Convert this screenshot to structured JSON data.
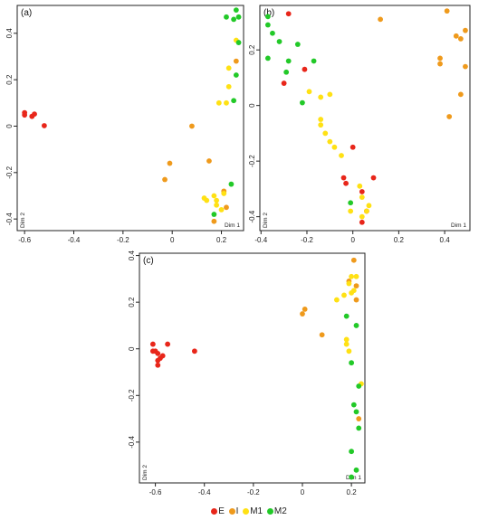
{
  "colors": {
    "E": "#e8261a",
    "I": "#ef9a1c",
    "M1": "#ffe114",
    "M2": "#22c928"
  },
  "legend": [
    {
      "key": "E",
      "label": "E"
    },
    {
      "key": "I",
      "label": "I"
    },
    {
      "key": "M1",
      "label": "M1"
    },
    {
      "key": "M2",
      "label": "M2"
    }
  ],
  "chart_data": [
    {
      "type": "scatter",
      "panel_label": "(a)",
      "xlabel": "Dim 1",
      "ylabel": "Dim 2",
      "xlim": [
        -0.63,
        0.29
      ],
      "ylim": [
        -0.45,
        0.52
      ],
      "xticks": [
        "-0.6",
        "-0.4",
        "-0.2",
        "0",
        "0.2"
      ],
      "xtick_values": [
        -0.6,
        -0.4,
        -0.2,
        0,
        0.2
      ],
      "yticks": [
        "-0.4",
        "-0.2",
        "0",
        "0.2",
        "0.4"
      ],
      "ytick_values": [
        -0.4,
        -0.2,
        0,
        0.2,
        0.4
      ],
      "series": [
        {
          "name": "E",
          "points": [
            [
              -0.6,
              0.058
            ],
            [
              -0.6,
              0.048
            ],
            [
              -0.57,
              0.042
            ],
            [
              -0.56,
              0.052
            ],
            [
              -0.52,
              0.002
            ]
          ]
        },
        {
          "name": "I",
          "points": [
            [
              0.08,
              0.0
            ],
            [
              -0.01,
              -0.16
            ],
            [
              -0.03,
              -0.23
            ],
            [
              0.15,
              -0.15
            ],
            [
              0.21,
              -0.28
            ],
            [
              0.26,
              0.28
            ],
            [
              0.17,
              -0.41
            ],
            [
              0.22,
              -0.35
            ]
          ]
        },
        {
          "name": "M1",
          "points": [
            [
              0.13,
              -0.31
            ],
            [
              0.14,
              -0.32
            ],
            [
              0.17,
              -0.3
            ],
            [
              0.18,
              -0.32
            ],
            [
              0.18,
              -0.34
            ],
            [
              0.2,
              -0.36
            ],
            [
              0.21,
              -0.29
            ],
            [
              0.22,
              0.1
            ],
            [
              0.23,
              0.17
            ],
            [
              0.23,
              0.25
            ],
            [
              0.26,
              0.37
            ],
            [
              0.19,
              0.1
            ]
          ]
        },
        {
          "name": "M2",
          "points": [
            [
              0.22,
              0.47
            ],
            [
              0.26,
              0.5
            ],
            [
              0.25,
              0.46
            ],
            [
              0.27,
              0.47
            ],
            [
              0.27,
              0.36
            ],
            [
              0.26,
              0.22
            ],
            [
              0.25,
              0.11
            ],
            [
              0.24,
              -0.25
            ],
            [
              0.17,
              -0.38
            ]
          ]
        }
      ]
    },
    {
      "type": "scatter",
      "panel_label": "(b)",
      "xlabel": "Dim 1",
      "ylabel": "Dim 2",
      "xlim": [
        -0.405,
        0.51
      ],
      "ylim": [
        -0.45,
        0.36
      ],
      "xticks": [
        "-0.4",
        "-0.2",
        "0",
        "0.2",
        "0.4"
      ],
      "xtick_values": [
        -0.4,
        -0.2,
        0,
        0.2,
        0.4
      ],
      "yticks": [
        "-0.4",
        "-0.2",
        "0",
        "0.2"
      ],
      "ytick_values": [
        -0.4,
        -0.2,
        0,
        0.2
      ],
      "series": [
        {
          "name": "E",
          "points": [
            [
              -0.28,
              0.33
            ],
            [
              -0.3,
              0.08
            ],
            [
              -0.21,
              0.13
            ],
            [
              0.0,
              -0.15
            ],
            [
              -0.04,
              -0.26
            ],
            [
              -0.03,
              -0.28
            ],
            [
              0.09,
              -0.26
            ],
            [
              0.04,
              -0.31
            ],
            [
              0.06,
              -0.38
            ],
            [
              0.04,
              -0.42
            ]
          ]
        },
        {
          "name": "I",
          "points": [
            [
              0.12,
              0.31
            ],
            [
              0.41,
              0.34
            ],
            [
              0.45,
              0.25
            ],
            [
              0.47,
              0.24
            ],
            [
              0.49,
              0.27
            ],
            [
              0.38,
              0.17
            ],
            [
              0.38,
              0.15
            ],
            [
              0.49,
              0.14
            ],
            [
              0.47,
              0.04
            ],
            [
              0.42,
              -0.04
            ]
          ]
        },
        {
          "name": "M1",
          "points": [
            [
              -0.19,
              0.05
            ],
            [
              -0.14,
              0.03
            ],
            [
              -0.1,
              0.04
            ],
            [
              -0.14,
              -0.05
            ],
            [
              -0.14,
              -0.07
            ],
            [
              -0.12,
              -0.1
            ],
            [
              -0.1,
              -0.13
            ],
            [
              -0.08,
              -0.15
            ],
            [
              -0.05,
              -0.18
            ],
            [
              0.03,
              -0.29
            ],
            [
              0.04,
              -0.33
            ],
            [
              0.07,
              -0.36
            ],
            [
              0.06,
              -0.38
            ],
            [
              -0.01,
              -0.38
            ],
            [
              0.04,
              -0.4
            ]
          ]
        },
        {
          "name": "M2",
          "points": [
            [
              -0.37,
              0.32
            ],
            [
              -0.37,
              0.29
            ],
            [
              -0.35,
              0.26
            ],
            [
              -0.32,
              0.23
            ],
            [
              -0.24,
              0.22
            ],
            [
              -0.37,
              0.17
            ],
            [
              -0.28,
              0.16
            ],
            [
              -0.17,
              0.16
            ],
            [
              -0.29,
              0.12
            ],
            [
              -0.22,
              0.01
            ],
            [
              -0.01,
              -0.35
            ]
          ]
        }
      ]
    },
    {
      "type": "scatter",
      "panel_label": "(c)",
      "xlabel": "Dim 1",
      "ylabel": "Dim 2",
      "xlim": [
        -0.665,
        0.255
      ],
      "ylim": [
        -0.575,
        0.41
      ],
      "xticks": [
        "-0.6",
        "-0.4",
        "-0.2",
        "0",
        "0.2"
      ],
      "xtick_values": [
        -0.6,
        -0.4,
        -0.2,
        0,
        0.2
      ],
      "yticks": [
        "-0.4",
        "-0.2",
        "0",
        "0.2",
        "0.4"
      ],
      "ytick_values": [
        -0.4,
        -0.2,
        0,
        0.2,
        0.4
      ],
      "series": [
        {
          "name": "E",
          "points": [
            [
              -0.6,
              -0.01
            ],
            [
              -0.61,
              -0.01
            ],
            [
              -0.61,
              0.02
            ],
            [
              -0.59,
              -0.02
            ],
            [
              -0.58,
              -0.04
            ],
            [
              -0.59,
              -0.05
            ],
            [
              -0.59,
              -0.07
            ],
            [
              -0.57,
              -0.03
            ],
            [
              -0.55,
              0.02
            ],
            [
              -0.44,
              -0.01
            ]
          ]
        },
        {
          "name": "I",
          "points": [
            [
              0.0,
              0.15
            ],
            [
              0.01,
              0.17
            ],
            [
              0.08,
              0.06
            ],
            [
              0.21,
              0.38
            ],
            [
              0.19,
              0.29
            ],
            [
              0.22,
              0.27
            ],
            [
              0.22,
              0.21
            ],
            [
              0.23,
              -0.3
            ]
          ]
        },
        {
          "name": "M1",
          "points": [
            [
              0.14,
              0.21
            ],
            [
              0.17,
              0.23
            ],
            [
              0.19,
              0.28
            ],
            [
              0.2,
              0.31
            ],
            [
              0.2,
              0.24
            ],
            [
              0.21,
              0.25
            ],
            [
              0.22,
              0.31
            ],
            [
              0.18,
              0.04
            ],
            [
              0.18,
              0.02
            ],
            [
              0.19,
              -0.01
            ],
            [
              0.24,
              -0.15
            ]
          ]
        },
        {
          "name": "M2",
          "points": [
            [
              0.18,
              0.14
            ],
            [
              0.22,
              0.1
            ],
            [
              0.2,
              -0.06
            ],
            [
              0.23,
              -0.16
            ],
            [
              0.21,
              -0.24
            ],
            [
              0.23,
              -0.34
            ],
            [
              0.22,
              -0.27
            ],
            [
              0.2,
              -0.44
            ],
            [
              0.22,
              -0.52
            ],
            [
              0.2,
              -0.55
            ]
          ]
        }
      ]
    }
  ]
}
